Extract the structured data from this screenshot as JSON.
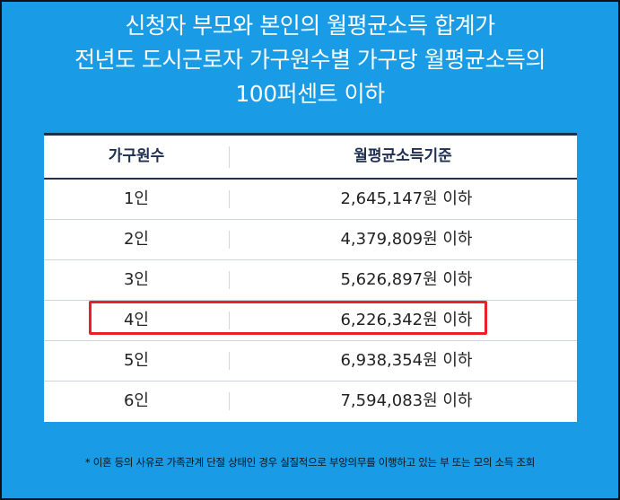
{
  "headline": {
    "line1": "신청자 부모와 본인의 월평균소득 합계가",
    "line2": "전년도 도시근로자 가구원수별 가구당 월평균소득의",
    "line3": "100퍼센트 이하"
  },
  "table": {
    "headers": [
      "가구원수",
      "월평균소득기준"
    ],
    "rows": [
      {
        "members": "1인",
        "income": "2,645,147원 이하"
      },
      {
        "members": "2인",
        "income": "4,379,809원 이하"
      },
      {
        "members": "3인",
        "income": "5,626,897원 이하"
      },
      {
        "members": "4인",
        "income": "6,226,342원 이하"
      },
      {
        "members": "5인",
        "income": "6,938,354원 이하"
      },
      {
        "members": "6인",
        "income": "7,594,083원 이하"
      }
    ],
    "highlighted_row": "4인"
  },
  "footnote": "* 이혼 등의 사유로 가족관계 단절 상태인 경우 실질적으로 부양의무를 이행하고 있는 부 또는 모의 소득 조회",
  "colors": {
    "background": "#1a9be6",
    "header_text": "#1e2f52",
    "highlight": "#e8202a"
  }
}
